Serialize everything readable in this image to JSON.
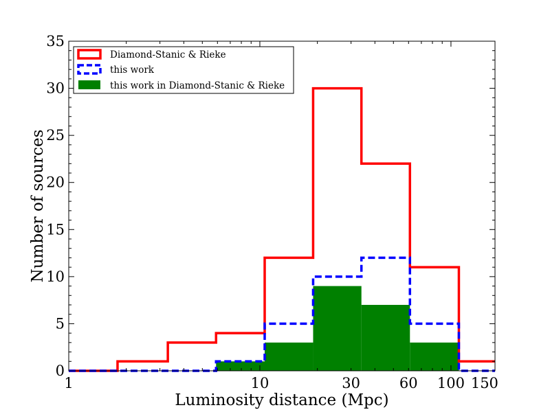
{
  "chart_data": {
    "type": "histogram",
    "title": "",
    "xlabel": "Luminosity distance (Mpc)",
    "ylabel": "Number of sources",
    "xscale": "log",
    "xlim": [
      1,
      170
    ],
    "ylim": [
      0,
      35
    ],
    "xticks": [
      {
        "value": 1,
        "label": "1"
      },
      {
        "value": 10,
        "label": "10"
      },
      {
        "value": 30,
        "label": "30"
      },
      {
        "value": 60,
        "label": "60"
      },
      {
        "value": 100,
        "label": "100"
      },
      {
        "value": 150,
        "label": "150"
      }
    ],
    "yticks": [
      {
        "value": 0,
        "label": "0"
      },
      {
        "value": 5,
        "label": "5"
      },
      {
        "value": 10,
        "label": "10"
      },
      {
        "value": 15,
        "label": "15"
      },
      {
        "value": 20,
        "label": "20"
      },
      {
        "value": 25,
        "label": "25"
      },
      {
        "value": 30,
        "label": "30"
      },
      {
        "value": 35,
        "label": "35"
      }
    ],
    "bin_edges": [
      1.0,
      1.8,
      3.3,
      5.9,
      10.6,
      19.0,
      34.0,
      61.0,
      110.0,
      170.0
    ],
    "legend_position": "upper-left",
    "series": [
      {
        "name": "Diamond-Stanic & Rieke",
        "style": "step-outline-solid",
        "color": "#ff0000",
        "counts": [
          0,
          1,
          3,
          4,
          12,
          30,
          22,
          11,
          1
        ]
      },
      {
        "name": "this work",
        "style": "step-outline-dashed",
        "color": "#0000ff",
        "counts": [
          0,
          0,
          0,
          1,
          5,
          10,
          12,
          5,
          0
        ]
      },
      {
        "name": "this work in Diamond-Stanic & Rieke",
        "style": "filled",
        "color": "#008000",
        "counts": [
          0,
          0,
          0,
          1,
          3,
          9,
          7,
          3,
          0
        ]
      }
    ]
  }
}
